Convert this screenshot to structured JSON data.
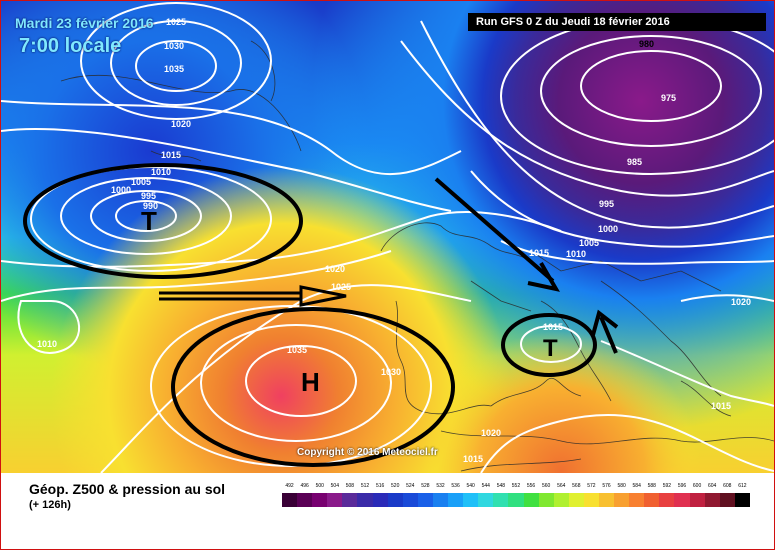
{
  "header": {
    "date": "Mardi 23 février 2016",
    "time": "7:00 locale",
    "run": "Run GFS 0 Z du Jeudi 18 février 2016"
  },
  "copyright": "Copyright © 2016 Meteociel.fr",
  "legend": {
    "title": "Géop. Z500 & pression au sol",
    "subtitle": "(+ 126h)",
    "scale_values": [
      "492",
      "496",
      "500",
      "504",
      "508",
      "512",
      "516",
      "520",
      "524",
      "528",
      "532",
      "536",
      "540",
      "544",
      "548",
      "552",
      "556",
      "560",
      "564",
      "568",
      "572",
      "576",
      "580",
      "584",
      "588",
      "592",
      "596",
      "600",
      "604",
      "608",
      "612"
    ],
    "scale_colors": [
      "#3a0036",
      "#5a0055",
      "#780070",
      "#8a1a8a",
      "#5a2a9a",
      "#3a2aa8",
      "#2a2ab8",
      "#1a3ac8",
      "#1a4ad8",
      "#1a60e8",
      "#1a80f0",
      "#1aa0f8",
      "#20c0f8",
      "#30d8e0",
      "#30e0b0",
      "#30e080",
      "#40e040",
      "#80e830",
      "#b0f030",
      "#e0f030",
      "#f8e030",
      "#f8c030",
      "#f8a030",
      "#f88030",
      "#f06030",
      "#e84040",
      "#e03050",
      "#c02040",
      "#901830",
      "#601020",
      "#000000"
    ]
  },
  "pressure_labels": [
    {
      "id": "p1025a",
      "text": "1025"
    },
    {
      "id": "p1030a",
      "text": "1030"
    },
    {
      "id": "p1035a",
      "text": "1035"
    },
    {
      "id": "p1020a",
      "text": "1020"
    },
    {
      "id": "p1015a",
      "text": "1015"
    },
    {
      "id": "p1010a",
      "text": "1010"
    },
    {
      "id": "p1005a",
      "text": "1005"
    },
    {
      "id": "p1000a",
      "text": "1000"
    },
    {
      "id": "p995a",
      "text": "995"
    },
    {
      "id": "p990a",
      "text": "990"
    },
    {
      "id": "p980",
      "text": "980"
    },
    {
      "id": "p975",
      "text": "975"
    },
    {
      "id": "p985",
      "text": "985"
    },
    {
      "id": "p995b",
      "text": "995"
    },
    {
      "id": "p1000b",
      "text": "1000"
    },
    {
      "id": "p1005b",
      "text": "1005"
    },
    {
      "id": "p1010b",
      "text": "1010"
    },
    {
      "id": "p1015b",
      "text": "1015"
    },
    {
      "id": "p1020b",
      "text": "1020"
    },
    {
      "id": "p1025b",
      "text": "1025"
    },
    {
      "id": "p1010c",
      "text": "1010"
    },
    {
      "id": "p1035b",
      "text": "1035"
    },
    {
      "id": "p1030b",
      "text": "1030"
    },
    {
      "id": "p1015c",
      "text": "1015"
    },
    {
      "id": "p1020c",
      "text": "1020"
    },
    {
      "id": "p1015d",
      "text": "1015"
    },
    {
      "id": "p1020d",
      "text": "1020"
    },
    {
      "id": "p1015e",
      "text": "1015"
    }
  ],
  "symbols": {
    "low_west": "T",
    "high": "H",
    "low_italy": "T"
  }
}
